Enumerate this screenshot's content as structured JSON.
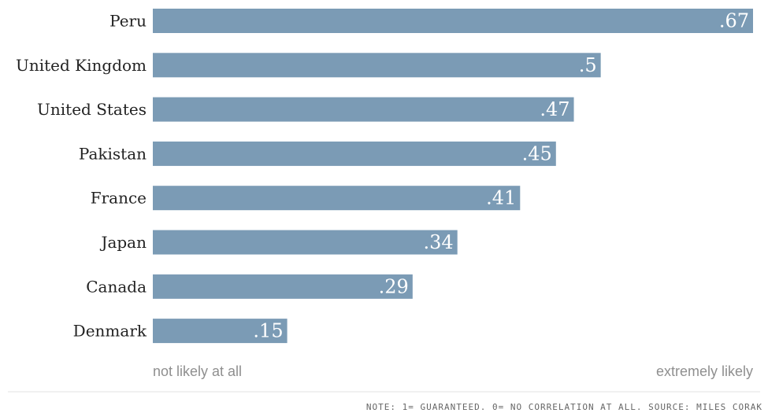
{
  "chart_data": {
    "type": "bar",
    "orientation": "horizontal",
    "categories": [
      "Peru",
      "United Kingdom",
      "United States",
      "Pakistan",
      "France",
      "Japan",
      "Canada",
      "Denmark"
    ],
    "values": [
      0.67,
      0.5,
      0.47,
      0.45,
      0.41,
      0.34,
      0.29,
      0.15
    ],
    "value_labels": [
      ".67",
      ".5",
      ".47",
      ".45",
      ".41",
      ".34",
      ".29",
      ".15"
    ],
    "xlim": [
      0,
      0.67
    ],
    "title": "",
    "xlabel": "",
    "ylabel": "",
    "scale_min_label": "not likely at all",
    "scale_max_label": "extremely likely",
    "grid": false,
    "bar_color": "#7b9bb5"
  },
  "footer": {
    "note": "NOTE: 1= GUARANTEED. 0= NO CORRELATION AT ALL. SOURCE: MILES CORAK"
  }
}
